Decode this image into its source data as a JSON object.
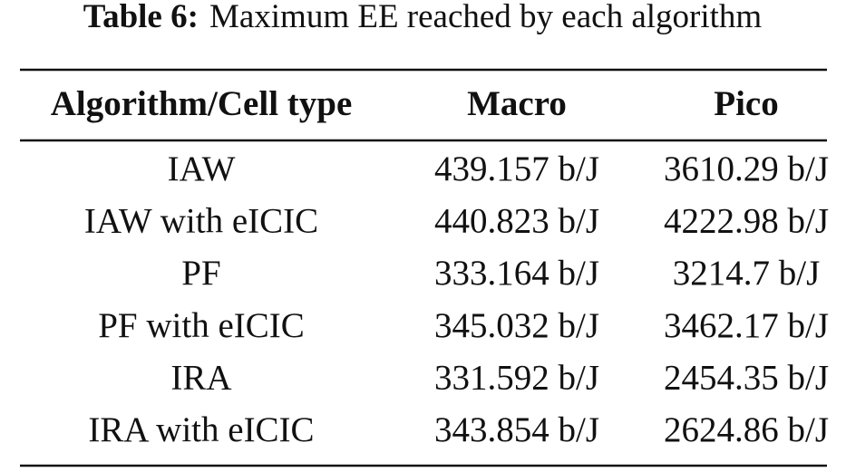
{
  "caption": {
    "label": "Table 6:",
    "text": "Maximum EE reached by each algorithm"
  },
  "table": {
    "header": [
      "Algorithm/Cell type",
      "Macro",
      "Pico"
    ],
    "rows": [
      [
        "IAW",
        "439.157 b/J",
        "3610.29 b/J"
      ],
      [
        "IAW with eICIC",
        "440.823 b/J",
        "4222.98 b/J"
      ],
      [
        "PF",
        "333.164 b/J",
        "3214.7 b/J"
      ],
      [
        "PF with eICIC",
        "345.032 b/J",
        "3462.17 b/J"
      ],
      [
        "IRA",
        "331.592 b/J",
        "2454.35 b/J"
      ],
      [
        "IRA with eICIC",
        "343.854 b/J",
        "2624.86 b/J"
      ]
    ]
  }
}
